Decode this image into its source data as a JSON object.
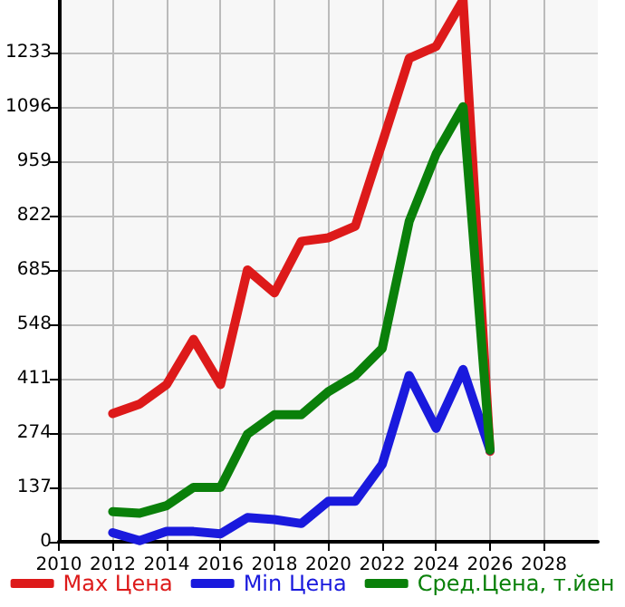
{
  "chart_data": {
    "type": "line",
    "x": [
      2012,
      2013,
      2014,
      2015,
      2016,
      2017,
      2018,
      2019,
      2020,
      2021,
      2022,
      2023,
      2024,
      2025,
      2026
    ],
    "series": [
      {
        "name": "Max Цена",
        "color": "#dd1a1a",
        "values": [
          323,
          347,
          396,
          510,
          396,
          685,
          627,
          757,
          766,
          795,
          1005,
          1218,
          1248,
          1365,
          228
        ]
      },
      {
        "name": "Min Цена",
        "color": "#1a1add",
        "values": [
          23,
          3,
          26,
          26,
          20,
          61,
          56,
          46,
          102,
          102,
          195,
          419,
          286,
          434,
          231
        ]
      },
      {
        "name": "Сред.Цена, т.йен",
        "color": "#0a800a",
        "values": [
          76,
          72,
          91,
          137,
          137,
          271,
          320,
          320,
          378,
          419,
          487,
          807,
          977,
          1096,
          231
        ]
      }
    ],
    "xlim": [
      2010,
      2030
    ],
    "xticks": [
      2010,
      2012,
      2014,
      2016,
      2018,
      2020,
      2022,
      2024,
      2026,
      2028
    ],
    "ylim": [
      0,
      1365
    ],
    "yticks": [
      0,
      137,
      274,
      411,
      548,
      685,
      822,
      959,
      1096,
      1233
    ],
    "grid": true,
    "legend": "bottom",
    "marker": "none",
    "line_style": "solid"
  }
}
